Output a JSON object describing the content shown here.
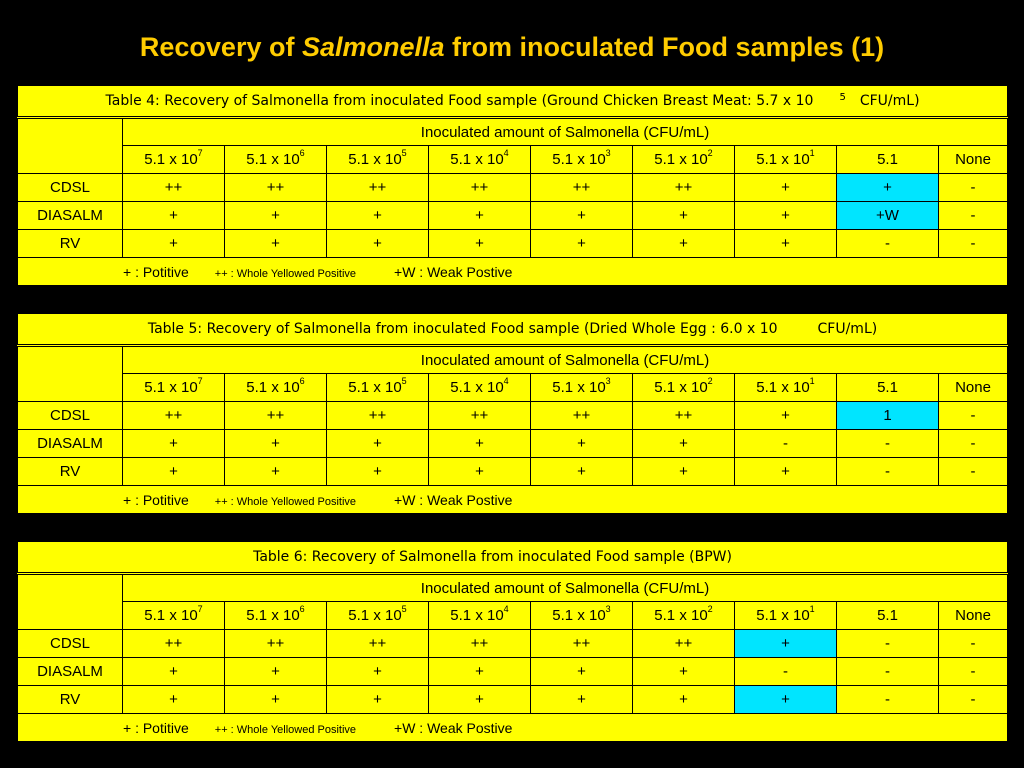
{
  "title": {
    "pre": "Recovery of ",
    "italic": "Salmonella",
    "post": " from inoculated Food samples (1)"
  },
  "inoculated_header": "Inoculated amount of Salmonella (CFU/mL)",
  "columns": [
    {
      "base": "5.1 x 10",
      "exp": "7"
    },
    {
      "base": "5.1 x 10",
      "exp": "6"
    },
    {
      "base": "5.1 x 10",
      "exp": "5"
    },
    {
      "base": "5.1 x 10",
      "exp": "4"
    },
    {
      "base": "5.1 x 10",
      "exp": "3"
    },
    {
      "base": "5.1 x 10",
      "exp": "2"
    },
    {
      "base": "5.1 x 10",
      "exp": "1"
    },
    {
      "base": "5.1",
      "exp": ""
    },
    {
      "base": "None",
      "exp": ""
    }
  ],
  "legend": {
    "positive": "+ : Potitive",
    "yellowed": "++ : Whole Yellowed Positive",
    "weak": "+W : Weak Postive"
  },
  "highlight_color": "#00e5ff",
  "tables": [
    {
      "id": "t4",
      "caption": "Table 4: Recovery of Salmonella from inoculated Food sample (Ground Chicken Breast Meat: 5.7 x 10",
      "caption_sup": "5",
      "caption_tail": "CFU/mL)",
      "rows": [
        {
          "label": "CDSL",
          "cells": [
            "++",
            "++",
            "++",
            "++",
            "++",
            "++",
            "+",
            "+",
            "-"
          ],
          "hl": [
            7
          ]
        },
        {
          "label": "DIASALM",
          "cells": [
            "+",
            "+",
            "+",
            "+",
            "+",
            "+",
            "+",
            "+W",
            "-"
          ],
          "hl": [
            7
          ]
        },
        {
          "label": "RV",
          "cells": [
            "+",
            "+",
            "+",
            "+",
            "+",
            "+",
            "+",
            "-",
            "-"
          ],
          "hl": []
        }
      ]
    },
    {
      "id": "t5",
      "caption": "Table 5: Recovery of Salmonella from inoculated Food sample (Dried Whole Egg : 6.0 x 10",
      "caption_sup": "",
      "caption_tail": "CFU/mL)",
      "rows": [
        {
          "label": "CDSL",
          "cells": [
            "++",
            "++",
            "++",
            "++",
            "++",
            "++",
            "+",
            "1",
            "-"
          ],
          "hl": [
            7
          ]
        },
        {
          "label": "DIASALM",
          "cells": [
            "+",
            "+",
            "+",
            "+",
            "+",
            "+",
            "-",
            "-",
            "-"
          ],
          "hl": []
        },
        {
          "label": "RV",
          "cells": [
            "+",
            "+",
            "+",
            "+",
            "+",
            "+",
            "+",
            "-",
            "-"
          ],
          "hl": []
        }
      ]
    },
    {
      "id": "t6",
      "caption": "Table 6: Recovery of Salmonella from inoculated Food sample (BPW)",
      "caption_sup": "",
      "caption_tail": "",
      "rows": [
        {
          "label": "CDSL",
          "cells": [
            "++",
            "++",
            "++",
            "++",
            "++",
            "++",
            "+",
            "-",
            "-"
          ],
          "hl": [
            6
          ]
        },
        {
          "label": "DIASALM",
          "cells": [
            "+",
            "+",
            "+",
            "+",
            "+",
            "+",
            "-",
            "-",
            "-"
          ],
          "hl": []
        },
        {
          "label": "RV",
          "cells": [
            "+",
            "+",
            "+",
            "+",
            "+",
            "+",
            "+",
            "-",
            "-"
          ],
          "hl": [
            6
          ]
        }
      ]
    }
  ]
}
